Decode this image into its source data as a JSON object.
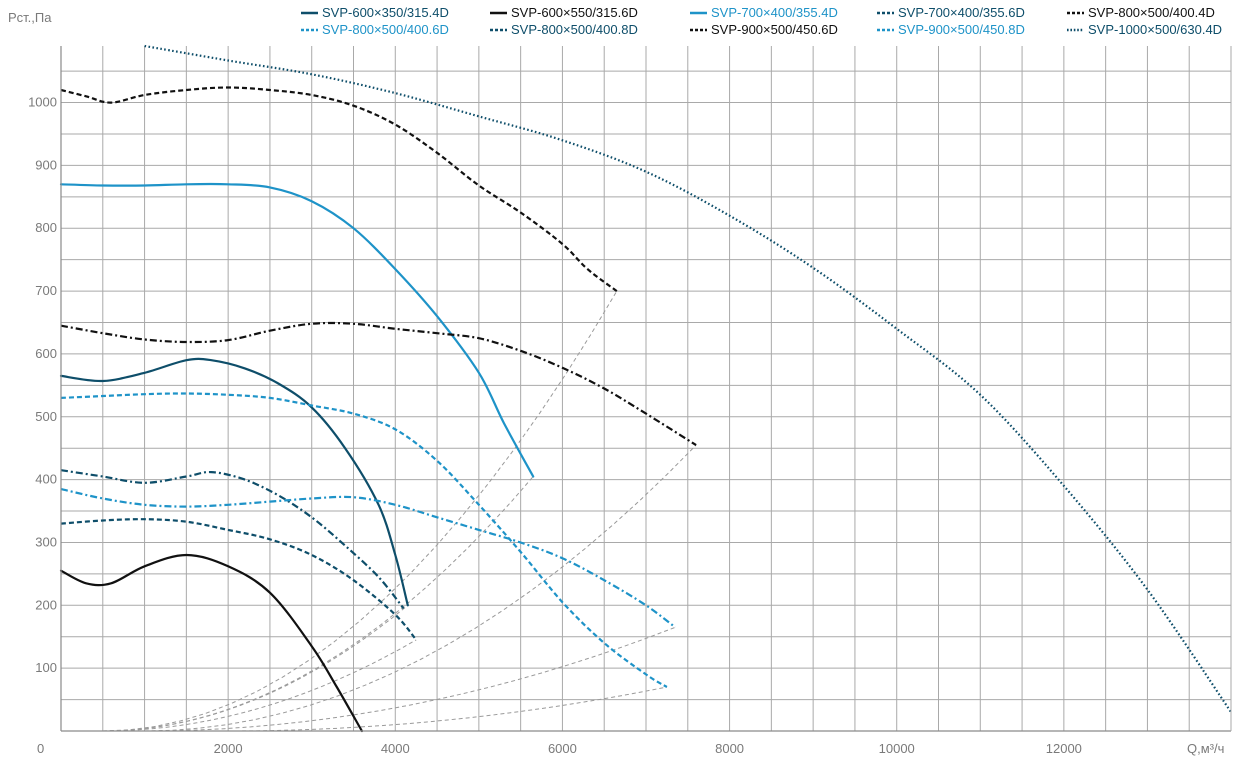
{
  "chart_data": {
    "type": "line",
    "title": "",
    "xlabel": "Q,м³/ч",
    "ylabel": "Pст.,Па",
    "xlim": [
      0,
      14000
    ],
    "ylim": [
      0,
      1090
    ],
    "x_ticks": [
      0,
      2000,
      4000,
      6000,
      8000,
      10000,
      12000
    ],
    "y_ticks": [
      100,
      200,
      300,
      400,
      500,
      600,
      700,
      800,
      900,
      1000
    ],
    "grid": true,
    "legend_position": "top-right",
    "series": [
      {
        "name": "SVP-600×350/315.4D",
        "color": "#0e4e6a",
        "dash": "solid",
        "x": [
          0,
          500,
          1000,
          1500,
          1800,
          2200,
          2600,
          3000,
          3400,
          3800,
          4000,
          4150
        ],
        "y": [
          565,
          557,
          570,
          590,
          590,
          577,
          553,
          515,
          450,
          360,
          280,
          200
        ]
      },
      {
        "name": "SVP-600×550/315.6D",
        "color": "#111111",
        "dash": "solid",
        "x": [
          0,
          300,
          600,
          1000,
          1500,
          2000,
          2500,
          3000,
          3300,
          3600
        ],
        "y": [
          255,
          235,
          235,
          262,
          280,
          262,
          220,
          135,
          70,
          0
        ]
      },
      {
        "name": "SVP-700×400/355.4D",
        "color": "#1e93c8",
        "dash": "solid",
        "x": [
          0,
          500,
          1000,
          1500,
          2000,
          2500,
          3000,
          3500,
          4000,
          4500,
          5000,
          5300,
          5650
        ],
        "y": [
          870,
          868,
          868,
          870,
          870,
          865,
          843,
          800,
          735,
          660,
          570,
          490,
          405
        ]
      },
      {
        "name": "SVP-700×400/355.6D",
        "color": "#0e4e6a",
        "dash": "dash",
        "x": [
          0,
          500,
          1000,
          1500,
          2000,
          2500,
          3000,
          3500,
          4000,
          4250
        ],
        "y": [
          330,
          335,
          337,
          333,
          320,
          305,
          280,
          240,
          185,
          145
        ]
      },
      {
        "name": "SVP-800×500/400.4D",
        "color": "#111111",
        "dash": "dash",
        "x": [
          0,
          300,
          600,
          1000,
          1500,
          2000,
          2500,
          3000,
          3500,
          4000,
          4500,
          5000,
          5500,
          6000,
          6300,
          6650
        ],
        "y": [
          1020,
          1010,
          1000,
          1012,
          1020,
          1024,
          1020,
          1012,
          995,
          965,
          920,
          868,
          825,
          775,
          735,
          700
        ]
      },
      {
        "name": "SVP-800×500/400.6D",
        "color": "#1e93c8",
        "dash": "dash",
        "x": [
          0,
          500,
          1000,
          1500,
          2000,
          2500,
          3000,
          3500,
          4000,
          4500,
          5000,
          5500,
          6000,
          6500,
          7000,
          7250
        ],
        "y": [
          530,
          533,
          536,
          537,
          535,
          530,
          518,
          505,
          480,
          430,
          360,
          285,
          205,
          140,
          90,
          70
        ]
      },
      {
        "name": "SVP-800×500/400.8D",
        "color": "#0e4e6a",
        "dash": "dashdot",
        "x": [
          0,
          500,
          1000,
          1500,
          1800,
          2200,
          2600,
          3000,
          3400,
          3800,
          4100
        ],
        "y": [
          415,
          405,
          395,
          405,
          412,
          400,
          375,
          340,
          295,
          245,
          195
        ]
      },
      {
        "name": "SVP-900×500/450.6D",
        "color": "#111111",
        "dash": "dashdot",
        "x": [
          0,
          500,
          1000,
          1500,
          2000,
          2500,
          3000,
          3500,
          4000,
          4500,
          5000,
          5500,
          6000,
          6500,
          7000,
          7600
        ],
        "y": [
          645,
          633,
          623,
          619,
          622,
          637,
          648,
          648,
          640,
          633,
          625,
          605,
          578,
          545,
          505,
          455
        ]
      },
      {
        "name": "SVP-900×500/450.8D",
        "color": "#1e93c8",
        "dash": "dashdot",
        "x": [
          0,
          500,
          1000,
          1500,
          2000,
          2500,
          3000,
          3500,
          4000,
          4500,
          5000,
          5500,
          6000,
          6500,
          7000,
          7350
        ],
        "y": [
          385,
          370,
          360,
          357,
          360,
          365,
          370,
          372,
          360,
          340,
          320,
          300,
          275,
          240,
          200,
          165
        ]
      },
      {
        "name": "SVP-1000×500/630.4D",
        "color": "#0e4e6a",
        "dash": "dot",
        "x": [
          1000,
          2000,
          3000,
          4000,
          5000,
          6000,
          7000,
          8000,
          9000,
          10000,
          11000,
          12000,
          13000,
          14000
        ],
        "y": [
          1090,
          1067,
          1045,
          1015,
          978,
          940,
          890,
          820,
          737,
          640,
          535,
          390,
          225,
          30
        ]
      }
    ],
    "system_curves": {
      "color": "#9a9a9a",
      "dash": "dash",
      "lines": [
        {
          "x": [
            500,
            6650
          ],
          "y": [
            0,
            700
          ]
        },
        {
          "x": [
            500,
            5650
          ],
          "y": [
            0,
            405
          ]
        },
        {
          "x": [
            500,
            4150
          ],
          "y": [
            0,
            200
          ]
        },
        {
          "x": [
            1000,
            7600
          ],
          "y": [
            0,
            455
          ]
        },
        {
          "x": [
            500,
            4250
          ],
          "y": [
            0,
            145
          ]
        },
        {
          "x": [
            1000,
            7350
          ],
          "y": [
            0,
            165
          ]
        },
        {
          "x": [
            2000,
            7250
          ],
          "y": [
            0,
            70
          ]
        }
      ]
    }
  }
}
